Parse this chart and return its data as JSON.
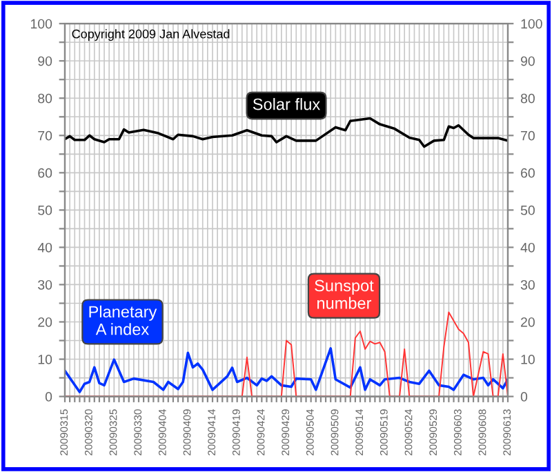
{
  "chart_data": {
    "type": "line",
    "annotations": [
      "Copyright 2009 Jan Alvestad"
    ],
    "xlim": [
      "2009-03-15",
      "2009-06-13"
    ],
    "xticks": [
      {
        "value": "2009-03-15",
        "label": "20090315"
      },
      {
        "value": "2009-03-16",
        "label": null
      },
      {
        "value": "2009-03-17",
        "label": null
      },
      {
        "value": "2009-03-18",
        "label": null
      },
      {
        "value": "2009-03-19",
        "label": null
      },
      {
        "value": "2009-03-20",
        "label": "20090320"
      },
      {
        "value": "2009-03-21",
        "label": null
      },
      {
        "value": "2009-03-22",
        "label": null
      },
      {
        "value": "2009-03-23",
        "label": null
      },
      {
        "value": "2009-03-24",
        "label": null
      },
      {
        "value": "2009-03-25",
        "label": "20090325"
      },
      {
        "value": "2009-03-26",
        "label": null
      },
      {
        "value": "2009-03-27",
        "label": null
      },
      {
        "value": "2009-03-28",
        "label": null
      },
      {
        "value": "2009-03-29",
        "label": null
      },
      {
        "value": "2009-03-30",
        "label": "20090330"
      },
      {
        "value": "2009-03-31",
        "label": null
      },
      {
        "value": "2009-04-01",
        "label": null
      },
      {
        "value": "2009-04-02",
        "label": null
      },
      {
        "value": "2009-04-03",
        "label": null
      },
      {
        "value": "2009-04-04",
        "label": "20090404"
      },
      {
        "value": "2009-04-05",
        "label": null
      },
      {
        "value": "2009-04-06",
        "label": null
      },
      {
        "value": "2009-04-07",
        "label": null
      },
      {
        "value": "2009-04-08",
        "label": null
      },
      {
        "value": "2009-04-09",
        "label": "20090409"
      },
      {
        "value": "2009-04-10",
        "label": null
      },
      {
        "value": "2009-04-11",
        "label": null
      },
      {
        "value": "2009-04-12",
        "label": null
      },
      {
        "value": "2009-04-13",
        "label": null
      },
      {
        "value": "2009-04-14",
        "label": "20090414"
      },
      {
        "value": "2009-04-15",
        "label": null
      },
      {
        "value": "2009-04-16",
        "label": null
      },
      {
        "value": "2009-04-17",
        "label": null
      },
      {
        "value": "2009-04-18",
        "label": null
      },
      {
        "value": "2009-04-19",
        "label": "20090419"
      },
      {
        "value": "2009-04-20",
        "label": null
      },
      {
        "value": "2009-04-21",
        "label": null
      },
      {
        "value": "2009-04-22",
        "label": null
      },
      {
        "value": "2009-04-23",
        "label": null
      },
      {
        "value": "2009-04-24",
        "label": "20090424"
      },
      {
        "value": "2009-04-25",
        "label": null
      },
      {
        "value": "2009-04-26",
        "label": null
      },
      {
        "value": "2009-04-27",
        "label": null
      },
      {
        "value": "2009-04-28",
        "label": null
      },
      {
        "value": "2009-04-29",
        "label": "20090429"
      },
      {
        "value": "2009-04-30",
        "label": null
      },
      {
        "value": "2009-05-01",
        "label": null
      },
      {
        "value": "2009-05-02",
        "label": null
      },
      {
        "value": "2009-05-03",
        "label": null
      },
      {
        "value": "2009-05-04",
        "label": "20090504"
      },
      {
        "value": "2009-05-05",
        "label": null
      },
      {
        "value": "2009-05-06",
        "label": null
      },
      {
        "value": "2009-05-07",
        "label": null
      },
      {
        "value": "2009-05-08",
        "label": null
      },
      {
        "value": "2009-05-09",
        "label": "20090509"
      },
      {
        "value": "2009-05-10",
        "label": null
      },
      {
        "value": "2009-05-11",
        "label": null
      },
      {
        "value": "2009-05-12",
        "label": null
      },
      {
        "value": "2009-05-13",
        "label": null
      },
      {
        "value": "2009-05-14",
        "label": "20090514"
      },
      {
        "value": "2009-05-15",
        "label": null
      },
      {
        "value": "2009-05-16",
        "label": null
      },
      {
        "value": "2009-05-17",
        "label": null
      },
      {
        "value": "2009-05-18",
        "label": null
      },
      {
        "value": "2009-05-19",
        "label": "20090519"
      },
      {
        "value": "2009-05-20",
        "label": null
      },
      {
        "value": "2009-05-21",
        "label": null
      },
      {
        "value": "2009-05-22",
        "label": null
      },
      {
        "value": "2009-05-23",
        "label": null
      },
      {
        "value": "2009-05-24",
        "label": "20090524"
      },
      {
        "value": "2009-05-25",
        "label": null
      },
      {
        "value": "2009-05-26",
        "label": null
      },
      {
        "value": "2009-05-27",
        "label": null
      },
      {
        "value": "2009-05-28",
        "label": null
      },
      {
        "value": "2009-05-29",
        "label": "20090529"
      },
      {
        "value": "2009-05-30",
        "label": null
      },
      {
        "value": "2009-05-31",
        "label": null
      },
      {
        "value": "2009-06-01",
        "label": null
      },
      {
        "value": "2009-06-02",
        "label": null
      },
      {
        "value": "2009-06-03",
        "label": "20090603"
      },
      {
        "value": "2009-06-04",
        "label": null
      },
      {
        "value": "2009-06-05",
        "label": null
      },
      {
        "value": "2009-06-06",
        "label": null
      },
      {
        "value": "2009-06-07",
        "label": null
      },
      {
        "value": "2009-06-08",
        "label": "20090608"
      },
      {
        "value": "2009-06-09",
        "label": null
      },
      {
        "value": "2009-06-10",
        "label": null
      },
      {
        "value": "2009-06-11",
        "label": null
      },
      {
        "value": "2009-06-12",
        "label": null
      },
      {
        "value": "2009-06-13",
        "label": "20090613"
      }
    ],
    "ylim": [
      0,
      100
    ],
    "yticks": [
      0,
      {
        "value": 5,
        "label": null
      },
      10,
      {
        "value": 15,
        "label": null
      },
      20,
      {
        "value": 25,
        "label": null
      },
      30,
      {
        "value": 35,
        "label": null
      },
      40,
      {
        "value": 45,
        "label": null
      },
      50,
      {
        "value": 55,
        "label": null
      },
      60,
      {
        "value": 65,
        "label": null
      },
      70,
      {
        "value": 75,
        "label": null
      },
      80,
      {
        "value": 85,
        "label": null
      },
      90,
      {
        "value": 95,
        "label": null
      },
      100
    ],
    "y2lim": [
      0,
      100
    ],
    "y2ticks": [
      0,
      {
        "value": 5,
        "label": null
      },
      10,
      {
        "value": 15,
        "label": null
      },
      20,
      {
        "value": 25,
        "label": null
      },
      30,
      {
        "value": 35,
        "label": null
      },
      40,
      {
        "value": 45,
        "label": null
      },
      50,
      {
        "value": 55,
        "label": null
      },
      60,
      {
        "value": 65,
        "label": null
      },
      70,
      {
        "value": 75,
        "label": null
      },
      80,
      {
        "value": 85,
        "label": null
      },
      90,
      {
        "value": 95,
        "label": null
      },
      100
    ],
    "grid": true,
    "legend": false,
    "series": [
      {
        "name": "Solar flux",
        "color": "#000000",
        "x": [
          "2009-03-15",
          "2009-03-16",
          "2009-03-17",
          "2009-03-19",
          "2009-03-20",
          "2009-03-21",
          "2009-03-23",
          "2009-03-24",
          "2009-03-26",
          "2009-03-27",
          "2009-03-28",
          "2009-03-31",
          "2009-04-03",
          "2009-04-06",
          "2009-04-07",
          "2009-04-10",
          "2009-04-12",
          "2009-04-14",
          "2009-04-18",
          "2009-04-21",
          "2009-04-24",
          "2009-04-26",
          "2009-04-27",
          "2009-04-29",
          "2009-05-01",
          "2009-05-05",
          "2009-05-09",
          "2009-05-11",
          "2009-05-12",
          "2009-05-16",
          "2009-05-18",
          "2009-05-21",
          "2009-05-24",
          "2009-05-26",
          "2009-05-27",
          "2009-05-29",
          "2009-05-31",
          "2009-06-01",
          "2009-06-02",
          "2009-06-03",
          "2009-06-05",
          "2009-06-06",
          "2009-06-11",
          "2009-06-13"
        ],
        "values": [
          69,
          69.8,
          68.8,
          68.8,
          70,
          69,
          68.2,
          69,
          69,
          71.6,
          70.8,
          71.5,
          70.6,
          69,
          70.2,
          69.8,
          69,
          69.6,
          70,
          71.4,
          70,
          69.8,
          68.2,
          69.8,
          68.6,
          68.6,
          72.2,
          71.4,
          73.9,
          74.6,
          73,
          71.8,
          69.4,
          68.8,
          67,
          68.6,
          68.8,
          72.4,
          72,
          72.7,
          70.2,
          69.3,
          69.3,
          68.6
        ]
      },
      {
        "name": "Planetary A index",
        "color": "#0033ff",
        "x": [
          "2009-03-15",
          "2009-03-18",
          "2009-03-19",
          "2009-03-20",
          "2009-03-21",
          "2009-03-22",
          "2009-03-23",
          "2009-03-25",
          "2009-03-27",
          "2009-03-29",
          "2009-04-02",
          "2009-04-04",
          "2009-04-05",
          "2009-04-07",
          "2009-04-08",
          "2009-04-09",
          "2009-04-10",
          "2009-04-11",
          "2009-04-12",
          "2009-04-14",
          "2009-04-17",
          "2009-04-18",
          "2009-04-19",
          "2009-04-21",
          "2009-04-23",
          "2009-04-24",
          "2009-04-25",
          "2009-04-26",
          "2009-04-28",
          "2009-04-30",
          "2009-05-01",
          "2009-05-04",
          "2009-05-05",
          "2009-05-08",
          "2009-05-09",
          "2009-05-12",
          "2009-05-14",
          "2009-05-15",
          "2009-05-16",
          "2009-05-18",
          "2009-05-19",
          "2009-05-22",
          "2009-05-24",
          "2009-05-26",
          "2009-05-28",
          "2009-05-30",
          "2009-06-01",
          "2009-06-02",
          "2009-06-04",
          "2009-06-06",
          "2009-06-08",
          "2009-06-09",
          "2009-06-10",
          "2009-06-12",
          "2009-06-13"
        ],
        "values": [
          6.9,
          1.2,
          3.4,
          3.9,
          7.8,
          3.6,
          3,
          9.9,
          3.9,
          4.8,
          3.9,
          1.8,
          3.9,
          2,
          3.9,
          11.7,
          7.8,
          8.8,
          7.2,
          1.8,
          5.4,
          7.7,
          3.9,
          5,
          3,
          4.8,
          4.2,
          5.4,
          3,
          2.6,
          4.8,
          4.6,
          1.8,
          12.9,
          4.6,
          2.4,
          7.8,
          1.8,
          4.6,
          3,
          4.6,
          5,
          3.9,
          3.4,
          6.9,
          3,
          2.6,
          1.8,
          5.8,
          4.6,
          5,
          3,
          4.6,
          2.2,
          4.6
        ]
      },
      {
        "name": "Sunspot number",
        "color": "#ff3333",
        "x": [
          "2009-03-15",
          "2009-04-20",
          "2009-04-21",
          "2009-04-22",
          "2009-04-28",
          "2009-04-29",
          "2009-04-30",
          "2009-05-01",
          "2009-05-12",
          "2009-05-13",
          "2009-05-14",
          "2009-05-15",
          "2009-05-16",
          "2009-05-17",
          "2009-05-18",
          "2009-05-19",
          "2009-05-20",
          "2009-05-22",
          "2009-05-23",
          "2009-05-24",
          "2009-05-30",
          "2009-05-31",
          "2009-06-01",
          "2009-06-03",
          "2009-06-04",
          "2009-06-05",
          "2009-06-06",
          "2009-06-08",
          "2009-06-09",
          "2009-06-10",
          "2009-06-11",
          "2009-06-12",
          "2009-06-13"
        ],
        "values": [
          0,
          0,
          10.5,
          0,
          0,
          15,
          13.9,
          0,
          0,
          15.7,
          17.5,
          12.7,
          14.8,
          14.1,
          14.5,
          12,
          0,
          0,
          12.7,
          0,
          0,
          13.2,
          22.6,
          18,
          16.9,
          14.5,
          0,
          12,
          11.4,
          0,
          0,
          11.4,
          0
        ]
      }
    ]
  }
}
